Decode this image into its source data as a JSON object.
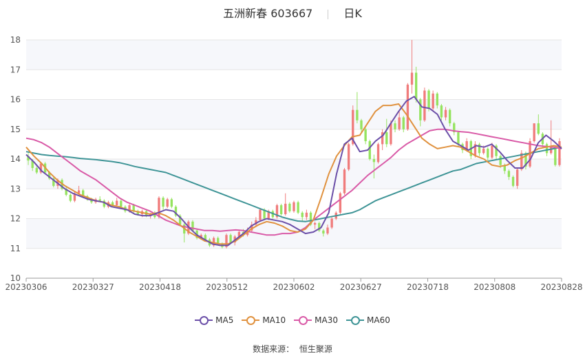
{
  "title": {
    "stock": "五洲新春 603667",
    "period": "日K"
  },
  "source": {
    "label": "数据来源：",
    "value": "恒生聚源"
  },
  "colors": {
    "up": "#F07C7C",
    "down": "#95E35F",
    "ma5": "#6B4FA8",
    "ma10": "#E0913E",
    "ma30": "#D95AA7",
    "ma60": "#3E9496",
    "grid": "#E6E6E6",
    "band": "#F6F7FB"
  },
  "chart_data": {
    "type": "candlestick",
    "ylim": [
      10,
      18
    ],
    "yticks": [
      10,
      11,
      12,
      13,
      14,
      15,
      16,
      17,
      18
    ],
    "xticks": [
      "20230306",
      "20230327",
      "20230418",
      "20230512",
      "20230602",
      "20230627",
      "20230718",
      "20230808",
      "20230828"
    ],
    "legend": [
      {
        "name": "MA5",
        "color": "#6B4FA8"
      },
      {
        "name": "MA10",
        "color": "#E0913E"
      },
      {
        "name": "MA30",
        "color": "#D95AA7"
      },
      {
        "name": "MA60",
        "color": "#3E9496"
      }
    ],
    "candles": [
      [
        14.1,
        14.2,
        13.8,
        13.95
      ],
      [
        13.95,
        14.0,
        13.6,
        13.7
      ],
      [
        13.7,
        13.75,
        13.5,
        13.55
      ],
      [
        13.55,
        13.9,
        13.5,
        13.85
      ],
      [
        13.85,
        13.9,
        13.5,
        13.55
      ],
      [
        13.55,
        13.6,
        13.3,
        13.35
      ],
      [
        13.35,
        13.4,
        13.05,
        13.1
      ],
      [
        13.1,
        13.35,
        13.0,
        13.3
      ],
      [
        13.3,
        13.35,
        12.95,
        13.0
      ],
      [
        13.0,
        13.1,
        12.75,
        12.8
      ],
      [
        12.8,
        12.85,
        12.55,
        12.6
      ],
      [
        12.6,
        12.9,
        12.55,
        12.85
      ],
      [
        12.85,
        13.1,
        12.8,
        12.95
      ],
      [
        12.95,
        13.0,
        12.7,
        12.75
      ],
      [
        12.75,
        12.8,
        12.6,
        12.65
      ],
      [
        12.65,
        12.7,
        12.5,
        12.55
      ],
      [
        12.55,
        12.7,
        12.5,
        12.65
      ],
      [
        12.65,
        12.75,
        12.55,
        12.6
      ],
      [
        12.6,
        12.65,
        12.35,
        12.4
      ],
      [
        12.4,
        12.6,
        12.35,
        12.55
      ],
      [
        12.55,
        12.6,
        12.4,
        12.45
      ],
      [
        12.45,
        12.7,
        12.4,
        12.6
      ],
      [
        12.6,
        12.65,
        12.35,
        12.4
      ],
      [
        12.4,
        12.45,
        12.2,
        12.25
      ],
      [
        12.25,
        12.5,
        12.2,
        12.45
      ],
      [
        12.45,
        12.5,
        12.2,
        12.25
      ],
      [
        12.25,
        12.3,
        12.1,
        12.15
      ],
      [
        12.15,
        12.3,
        12.05,
        12.25
      ],
      [
        12.25,
        12.3,
        12.05,
        12.1
      ],
      [
        12.1,
        12.2,
        12.0,
        12.15
      ],
      [
        12.15,
        12.25,
        12.0,
        12.05
      ],
      [
        12.05,
        12.75,
        12.0,
        12.7
      ],
      [
        12.7,
        12.75,
        12.3,
        12.4
      ],
      [
        12.4,
        12.7,
        12.35,
        12.65
      ],
      [
        12.65,
        12.7,
        12.35,
        12.4
      ],
      [
        12.4,
        12.45,
        12.05,
        12.1
      ],
      [
        12.1,
        12.15,
        11.75,
        11.8
      ],
      [
        11.8,
        11.85,
        11.2,
        11.5
      ],
      [
        11.5,
        11.95,
        11.45,
        11.9
      ],
      [
        11.9,
        11.95,
        11.55,
        11.6
      ],
      [
        11.6,
        11.65,
        11.3,
        11.35
      ],
      [
        11.35,
        11.5,
        11.3,
        11.45
      ],
      [
        11.45,
        11.5,
        11.25,
        11.3
      ],
      [
        11.3,
        11.35,
        11.05,
        11.1
      ],
      [
        11.1,
        11.4,
        11.05,
        11.35
      ],
      [
        11.35,
        11.4,
        11.1,
        11.15
      ],
      [
        11.15,
        11.2,
        11.0,
        11.05
      ],
      [
        11.05,
        11.5,
        11.0,
        11.45
      ],
      [
        11.45,
        11.5,
        11.15,
        11.2
      ],
      [
        11.2,
        11.45,
        11.1,
        11.4
      ],
      [
        11.4,
        11.6,
        11.35,
        11.55
      ],
      [
        11.55,
        11.65,
        11.4,
        11.45
      ],
      [
        11.45,
        11.7,
        11.4,
        11.6
      ],
      [
        11.6,
        11.9,
        11.55,
        11.8
      ],
      [
        11.8,
        12.05,
        11.75,
        11.95
      ],
      [
        11.95,
        12.35,
        11.9,
        12.3
      ],
      [
        12.3,
        12.35,
        11.95,
        12.0
      ],
      [
        12.0,
        12.3,
        11.95,
        12.25
      ],
      [
        12.25,
        12.3,
        12.0,
        12.05
      ],
      [
        12.05,
        12.5,
        12.0,
        12.45
      ],
      [
        12.45,
        12.5,
        12.1,
        12.15
      ],
      [
        12.15,
        12.85,
        12.1,
        12.5
      ],
      [
        12.5,
        12.55,
        12.2,
        12.25
      ],
      [
        12.25,
        12.6,
        12.2,
        12.55
      ],
      [
        12.55,
        12.6,
        12.15,
        12.2
      ],
      [
        12.2,
        12.25,
        11.9,
        12.05
      ],
      [
        12.05,
        12.3,
        11.95,
        12.2
      ],
      [
        12.2,
        12.25,
        11.75,
        11.8
      ],
      [
        11.8,
        11.9,
        11.65,
        11.85
      ],
      [
        11.85,
        11.9,
        11.55,
        11.6
      ],
      [
        11.6,
        11.65,
        11.4,
        11.5
      ],
      [
        11.5,
        11.8,
        11.45,
        11.7
      ],
      [
        11.7,
        12.05,
        11.65,
        12.0
      ],
      [
        12.0,
        12.25,
        11.95,
        12.2
      ],
      [
        12.2,
        12.9,
        12.15,
        12.85
      ],
      [
        12.85,
        13.7,
        12.8,
        13.65
      ],
      [
        13.65,
        14.55,
        13.6,
        14.5
      ],
      [
        14.5,
        15.8,
        14.45,
        15.65
      ],
      [
        15.65,
        16.25,
        15.2,
        15.3
      ],
      [
        15.3,
        15.35,
        14.9,
        15.0
      ],
      [
        15.0,
        15.05,
        14.5,
        14.6
      ],
      [
        14.6,
        14.65,
        13.95,
        14.0
      ],
      [
        14.0,
        14.15,
        13.35,
        13.9
      ],
      [
        13.9,
        14.55,
        13.85,
        14.5
      ],
      [
        14.5,
        15.0,
        14.3,
        14.9
      ],
      [
        14.9,
        15.35,
        14.4,
        14.5
      ],
      [
        14.5,
        15.3,
        14.45,
        15.2
      ],
      [
        15.2,
        15.3,
        14.9,
        15.0
      ],
      [
        15.0,
        15.6,
        14.95,
        15.4
      ],
      [
        15.4,
        15.45,
        14.9,
        15.0
      ],
      [
        15.0,
        16.55,
        14.95,
        16.5
      ],
      [
        16.5,
        18.0,
        16.2,
        16.9
      ],
      [
        16.9,
        17.1,
        15.9,
        16.0
      ],
      [
        16.0,
        16.05,
        15.1,
        15.3
      ],
      [
        15.3,
        16.4,
        15.25,
        16.3
      ],
      [
        16.3,
        16.35,
        15.6,
        15.7
      ],
      [
        15.7,
        16.3,
        15.6,
        16.2
      ],
      [
        16.2,
        16.25,
        15.7,
        15.8
      ],
      [
        15.8,
        15.85,
        15.3,
        15.4
      ],
      [
        15.4,
        15.75,
        15.3,
        15.65
      ],
      [
        15.65,
        15.7,
        15.1,
        15.2
      ],
      [
        15.2,
        15.25,
        14.8,
        14.9
      ],
      [
        14.9,
        14.95,
        14.4,
        14.5
      ],
      [
        14.5,
        14.55,
        14.2,
        14.3
      ],
      [
        14.3,
        14.7,
        14.25,
        14.6
      ],
      [
        14.6,
        14.65,
        14.0,
        14.1
      ],
      [
        14.1,
        14.6,
        14.05,
        14.5
      ],
      [
        14.5,
        14.55,
        14.1,
        14.2
      ],
      [
        14.2,
        14.45,
        14.15,
        14.35
      ],
      [
        14.35,
        14.4,
        13.95,
        14.05
      ],
      [
        14.05,
        14.55,
        14.0,
        14.45
      ],
      [
        14.45,
        14.5,
        14.0,
        14.1
      ],
      [
        14.1,
        14.15,
        13.7,
        13.8
      ],
      [
        13.8,
        13.85,
        13.5,
        13.6
      ],
      [
        13.6,
        13.65,
        13.3,
        13.4
      ],
      [
        13.4,
        13.45,
        13.05,
        13.1
      ],
      [
        13.1,
        13.7,
        13.0,
        13.65
      ],
      [
        13.65,
        14.3,
        13.6,
        14.2
      ],
      [
        14.2,
        14.25,
        13.65,
        13.75
      ],
      [
        13.75,
        14.7,
        13.7,
        14.6
      ],
      [
        14.6,
        15.2,
        14.55,
        15.2
      ],
      [
        15.2,
        15.5,
        14.8,
        14.85
      ],
      [
        14.85,
        14.9,
        14.4,
        14.5
      ],
      [
        14.5,
        14.55,
        14.1,
        14.2
      ],
      [
        14.2,
        15.3,
        14.15,
        14.4
      ],
      [
        14.4,
        14.45,
        13.75,
        13.8
      ],
      [
        13.8,
        14.7,
        13.75,
        14.6
      ]
    ],
    "ma5": [
      14.15,
      13.9,
      13.6,
      13.4,
      13.2,
      13.0,
      12.85,
      12.75,
      12.65,
      12.6,
      12.55,
      12.4,
      12.35,
      12.3,
      12.15,
      12.1,
      12.1,
      12.2,
      12.3,
      12.25,
      12.0,
      11.7,
      11.45,
      11.3,
      11.15,
      11.1,
      11.1,
      11.3,
      11.5,
      11.75,
      11.9,
      12.0,
      11.95,
      11.9,
      11.8,
      11.65,
      11.5,
      11.55,
      11.7,
      12.2,
      13.5,
      14.5,
      14.7,
      14.25,
      14.3,
      14.6,
      14.8,
      15.2,
      15.6,
      15.95,
      16.1,
      15.75,
      15.7,
      15.5,
      15.0,
      14.6,
      14.45,
      14.3,
      14.45,
      14.4,
      14.5,
      14.25,
      13.95,
      13.7,
      13.7,
      14.0,
      14.55,
      14.8,
      14.6,
      14.35
    ],
    "ma10": [
      14.4,
      14.1,
      13.85,
      13.55,
      13.3,
      13.1,
      12.95,
      12.8,
      12.7,
      12.6,
      12.55,
      12.45,
      12.4,
      12.3,
      12.25,
      12.2,
      12.15,
      12.2,
      12.1,
      11.95,
      11.75,
      11.55,
      11.4,
      11.25,
      11.2,
      11.15,
      11.15,
      11.25,
      11.45,
      11.65,
      11.8,
      11.9,
      11.85,
      11.75,
      11.6,
      11.55,
      11.65,
      11.95,
      12.7,
      13.5,
      14.1,
      14.45,
      14.75,
      14.8,
      15.2,
      15.6,
      15.8,
      15.8,
      15.85,
      15.5,
      15.1,
      14.7,
      14.5,
      14.35,
      14.4,
      14.45,
      14.4,
      14.25,
      14.1,
      14.0,
      13.8,
      13.75,
      13.8,
      13.95,
      14.05,
      14.2,
      14.35,
      14.4,
      14.45,
      14.4
    ],
    "ma30": [
      14.7,
      14.65,
      14.55,
      14.4,
      14.2,
      14.0,
      13.8,
      13.6,
      13.45,
      13.3,
      13.1,
      12.9,
      12.7,
      12.55,
      12.45,
      12.35,
      12.25,
      12.1,
      11.95,
      11.85,
      11.75,
      11.7,
      11.65,
      11.6,
      11.6,
      11.58,
      11.6,
      11.62,
      11.6,
      11.55,
      11.5,
      11.45,
      11.45,
      11.5,
      11.5,
      11.55,
      11.7,
      11.95,
      12.15,
      12.35,
      12.55,
      12.75,
      12.95,
      13.2,
      13.45,
      13.65,
      13.85,
      14.05,
      14.3,
      14.5,
      14.65,
      14.8,
      14.95,
      15.0,
      15.0,
      14.95,
      14.92,
      14.9,
      14.85,
      14.8,
      14.75,
      14.7,
      14.65,
      14.6,
      14.55,
      14.5,
      14.45,
      14.42,
      14.4,
      14.35
    ],
    "ma60": [
      14.25,
      14.2,
      14.15,
      14.12,
      14.1,
      14.08,
      14.05,
      14.02,
      14.0,
      13.98,
      13.95,
      13.92,
      13.88,
      13.82,
      13.75,
      13.7,
      13.65,
      13.6,
      13.55,
      13.45,
      13.35,
      13.25,
      13.15,
      13.05,
      12.95,
      12.85,
      12.75,
      12.65,
      12.55,
      12.45,
      12.35,
      12.25,
      12.15,
      12.05,
      11.98,
      11.92,
      11.9,
      11.95,
      12.0,
      12.05,
      12.1,
      12.15,
      12.2,
      12.3,
      12.45,
      12.6,
      12.7,
      12.8,
      12.9,
      13.0,
      13.1,
      13.2,
      13.3,
      13.4,
      13.5,
      13.6,
      13.65,
      13.75,
      13.85,
      13.9,
      13.95,
      14.0,
      14.05,
      14.1,
      14.15,
      14.2,
      14.25,
      14.3,
      14.35,
      14.4
    ]
  }
}
